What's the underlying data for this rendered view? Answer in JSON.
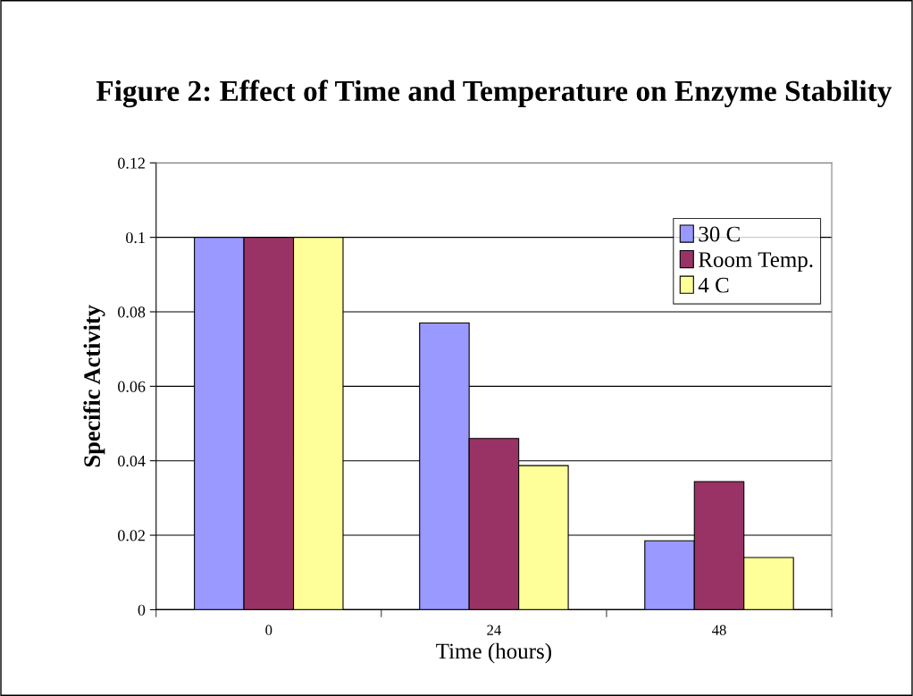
{
  "chart_data": {
    "type": "bar",
    "title": "Figure 2: Effect of Time and Temperature on Enzyme Stability",
    "xlabel": "Time (hours)",
    "ylabel": "Specific Activity",
    "categories": [
      "0",
      "24",
      "48"
    ],
    "series": [
      {
        "name": "30 C",
        "color": "#9999ff",
        "values": [
          0.1,
          0.077,
          0.0185
        ]
      },
      {
        "name": "Room Temp.",
        "color": "#993366",
        "values": [
          0.1,
          0.046,
          0.0344
        ]
      },
      {
        "name": "4 C",
        "color": "#ffff99",
        "values": [
          0.1,
          0.0387,
          0.014
        ]
      }
    ],
    "ylim": [
      0,
      0.12
    ],
    "yticks": [
      0,
      0.02,
      0.04,
      0.06,
      0.08,
      0.1,
      0.12
    ],
    "grid": "y",
    "legend": "right"
  }
}
